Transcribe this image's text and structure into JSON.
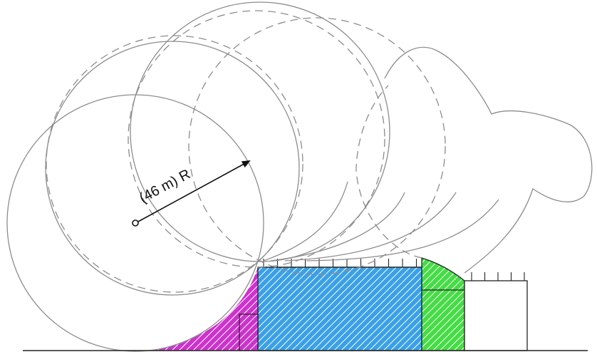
{
  "diagram": {
    "radius_label": "(46 m) R"
  },
  "colors": {
    "protected_zone_left": "#cc33cc",
    "main_structure": "#3aa0e8",
    "protected_zone_right": "#44dd44",
    "circle_stroke": "#8c8c8c",
    "line": "#222222"
  }
}
